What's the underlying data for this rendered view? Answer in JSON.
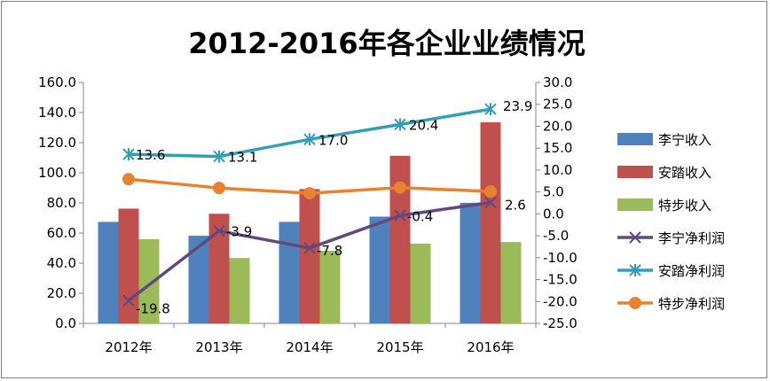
{
  "chart_data": {
    "type": "bar",
    "title": "2012-2016年各企业业绩情况",
    "categories": [
      "2012年",
      "2013年",
      "2014年",
      "2015年",
      "2016年"
    ],
    "y_left": {
      "min": 0,
      "max": 160,
      "step": 20,
      "tick_labels": [
        "0.0",
        "20.0",
        "40.0",
        "60.0",
        "80.0",
        "100.0",
        "120.0",
        "140.0",
        "160.0"
      ]
    },
    "y_right": {
      "min": -25,
      "max": 30,
      "step": 5,
      "tick_labels": [
        "-25.0",
        "-20.0",
        "-15.0",
        "-10.0",
        "-5.0",
        "0.0",
        "5.0",
        "10.0",
        "15.0",
        "20.0",
        "25.0",
        "30.0"
      ]
    },
    "bar_series": [
      {
        "name": "李宁收入",
        "color": "#4f81bd",
        "values": [
          67.4,
          58.2,
          67.4,
          70.9,
          80.1
        ]
      },
      {
        "name": "安踏收入",
        "color": "#c0504d",
        "values": [
          76.2,
          72.8,
          89.2,
          111.3,
          133.5
        ]
      },
      {
        "name": "特步收入",
        "color": "#9bbb59",
        "values": [
          55.9,
          43.4,
          48.2,
          53.0,
          54.0
        ]
      }
    ],
    "line_series": [
      {
        "name": "李宁净利润",
        "color": "#604a7b",
        "marker": "x",
        "values": [
          -19.8,
          -3.9,
          -7.8,
          -0.4,
          2.6
        ],
        "labels": [
          "-19.8",
          "-3.9",
          "-7.8",
          "-0.4",
          "2.6"
        ]
      },
      {
        "name": "安踏净利润",
        "color": "#31a0b5",
        "marker": "star",
        "values": [
          13.6,
          13.1,
          17.0,
          20.4,
          23.9
        ],
        "labels": [
          "13.6",
          "13.1",
          "17.0",
          "20.4",
          "23.9"
        ]
      },
      {
        "name": "特步净利润",
        "color": "#e8822e",
        "marker": "circle",
        "values": [
          7.9,
          5.9,
          4.7,
          6.0,
          5.1
        ]
      }
    ],
    "legend_position": "right",
    "grid": false
  }
}
